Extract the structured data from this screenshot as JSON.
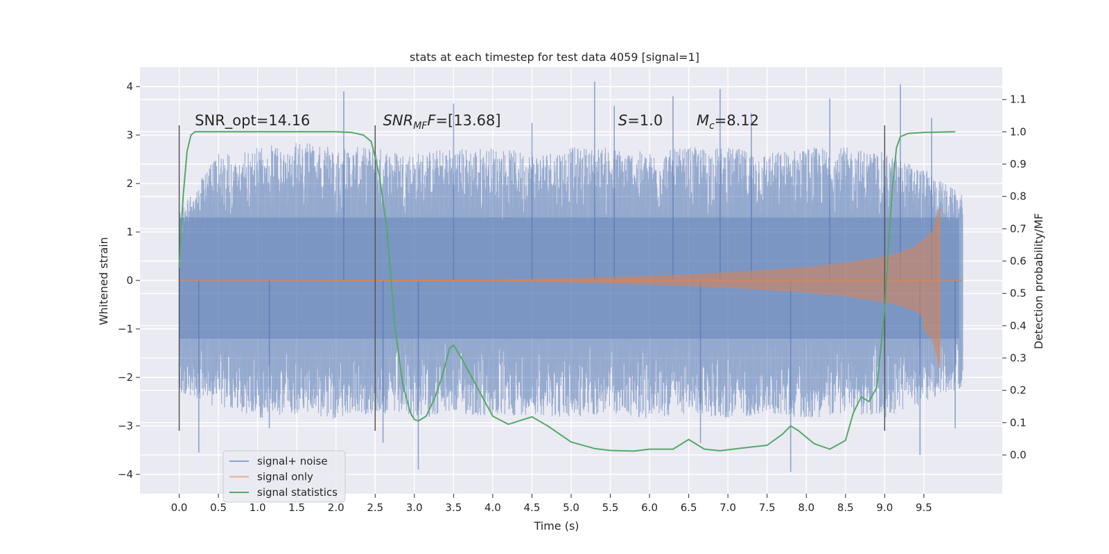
{
  "chart_data": {
    "type": "line",
    "title": "stats at each timestep for test data 4059 [signal=1]",
    "xlabel": "Time (s)",
    "ylabel": "Whitened strain",
    "y2label": "Detection probability/MF",
    "xlim": [
      -0.5,
      10.5
    ],
    "ylim": [
      -4.4,
      4.4
    ],
    "y2lim": [
      -0.12,
      1.2
    ],
    "x_ticks": [
      0.0,
      0.5,
      1.0,
      1.5,
      2.0,
      2.5,
      3.0,
      3.5,
      4.0,
      4.5,
      5.0,
      5.5,
      6.0,
      6.5,
      7.0,
      7.5,
      8.0,
      8.5,
      9.0,
      9.5
    ],
    "x_tick_labels": [
      "0.0",
      "0.5",
      "1.0",
      "1.5",
      "2.0",
      "2.5",
      "3.0",
      "3.5",
      "4.0",
      "4.5",
      "5.0",
      "5.5",
      "6.0",
      "6.5",
      "7.0",
      "7.5",
      "8.0",
      "8.5",
      "9.0",
      "9.5"
    ],
    "y_ticks": [
      -4,
      -3,
      -2,
      -1,
      0,
      1,
      2,
      3,
      4
    ],
    "y_tick_labels": [
      "−4",
      "−3",
      "−2",
      "−1",
      "0",
      "1",
      "2",
      "3",
      "4"
    ],
    "y2_ticks": [
      0.0,
      0.1,
      0.2,
      0.3,
      0.4,
      0.5,
      0.6,
      0.7,
      0.8,
      0.9,
      1.0,
      1.1
    ],
    "y2_tick_labels": [
      "0.0",
      "0.1",
      "0.2",
      "0.3",
      "0.4",
      "0.5",
      "0.6",
      "0.7",
      "0.8",
      "0.9",
      "1.0",
      "1.1"
    ],
    "grid": true,
    "legend_placement": "lower-left",
    "vertical_lines": {
      "x": [
        0.0,
        2.5,
        9.0
      ],
      "ymin": -3.1,
      "ymax": 3.2,
      "color": "#555555"
    },
    "annotations": [
      {
        "x": 0.2,
        "y": 3.3,
        "text": "SNR_opt=14.16"
      },
      {
        "x": 2.6,
        "y": 3.3,
        "prefix": "SNR",
        "sub": "MF",
        "suffix": "F=[13.68]"
      },
      {
        "x": 5.6,
        "y": 3.3,
        "prefix": "S",
        "sub": "",
        "suffix": "=1.0"
      },
      {
        "x": 6.6,
        "y": 3.3,
        "prefix": "M",
        "sub": "c",
        "suffix": "=8.12"
      }
    ],
    "series": [
      {
        "name": "signal+ noise",
        "axis": "left",
        "color": "#4c72b0",
        "x_range": [
          0.0,
          10.0
        ],
        "envelope": [
          [
            0.0,
            -2.1,
            1.3
          ],
          [
            0.5,
            -2.4,
            2.4
          ],
          [
            1.0,
            -2.6,
            2.5
          ],
          [
            1.5,
            -2.5,
            2.6
          ],
          [
            2.0,
            -2.6,
            2.5
          ],
          [
            2.5,
            -2.5,
            2.5
          ],
          [
            3.0,
            -2.6,
            2.4
          ],
          [
            3.5,
            -2.5,
            2.5
          ],
          [
            4.0,
            -2.6,
            2.5
          ],
          [
            4.5,
            -2.5,
            2.4
          ],
          [
            5.0,
            -2.6,
            2.5
          ],
          [
            5.5,
            -2.5,
            2.5
          ],
          [
            6.0,
            -2.6,
            2.4
          ],
          [
            6.5,
            -2.5,
            2.5
          ],
          [
            7.0,
            -2.6,
            2.5
          ],
          [
            7.5,
            -2.5,
            2.4
          ],
          [
            8.0,
            -2.6,
            2.5
          ],
          [
            8.5,
            -2.5,
            2.5
          ],
          [
            9.0,
            -2.6,
            2.4
          ],
          [
            9.5,
            -2.3,
            2.1
          ],
          [
            10.0,
            -2.0,
            1.6
          ]
        ],
        "peaks": [
          [
            0.25,
            -3.55
          ],
          [
            1.15,
            -3.05
          ],
          [
            2.1,
            3.9
          ],
          [
            2.6,
            -3.35
          ],
          [
            3.05,
            -3.9
          ],
          [
            3.5,
            3.65
          ],
          [
            4.5,
            3.25
          ],
          [
            5.3,
            4.1
          ],
          [
            5.55,
            3.6
          ],
          [
            6.3,
            3.8
          ],
          [
            6.65,
            -3.35
          ],
          [
            6.9,
            3.95
          ],
          [
            7.3,
            3.45
          ],
          [
            7.8,
            -3.95
          ],
          [
            8.3,
            3.75
          ],
          [
            9.2,
            4.05
          ],
          [
            9.45,
            -3.6
          ],
          [
            9.6,
            3.35
          ],
          [
            9.9,
            -3.05
          ]
        ]
      },
      {
        "name": "signal only",
        "axis": "left",
        "color": "#dd8452",
        "x_range": [
          0.0,
          9.7
        ],
        "envelope": [
          [
            0.0,
            0.0
          ],
          [
            4.0,
            0.02
          ],
          [
            5.0,
            0.05
          ],
          [
            6.0,
            0.1
          ],
          [
            6.5,
            0.13
          ],
          [
            7.0,
            0.17
          ],
          [
            7.5,
            0.22
          ],
          [
            8.0,
            0.28
          ],
          [
            8.5,
            0.37
          ],
          [
            9.0,
            0.5
          ],
          [
            9.2,
            0.58
          ],
          [
            9.4,
            0.72
          ],
          [
            9.6,
            1.0
          ],
          [
            9.7,
            1.5
          ]
        ],
        "merger_time": 9.7
      },
      {
        "name": "signal statistics",
        "axis": "right",
        "color": "#55a868",
        "x": [
          0.0,
          0.05,
          0.1,
          0.15,
          0.2,
          0.3,
          0.5,
          1.0,
          1.5,
          2.0,
          2.2,
          2.35,
          2.45,
          2.55,
          2.65,
          2.75,
          2.85,
          2.95,
          3.0,
          3.05,
          3.15,
          3.25,
          3.35,
          3.45,
          3.5,
          3.6,
          3.8,
          4.0,
          4.2,
          4.5,
          4.7,
          5.0,
          5.3,
          5.5,
          5.8,
          6.0,
          6.3,
          6.5,
          6.7,
          6.9,
          7.2,
          7.5,
          7.7,
          7.8,
          7.9,
          8.1,
          8.3,
          8.5,
          8.6,
          8.7,
          8.8,
          8.9,
          9.0,
          9.05,
          9.1,
          9.15,
          9.2,
          9.3,
          9.5,
          9.7,
          9.9
        ],
        "values": [
          0.58,
          0.8,
          0.94,
          0.99,
          1.0,
          1.0,
          1.0,
          1.0,
          1.0,
          1.0,
          0.998,
          0.99,
          0.97,
          0.87,
          0.7,
          0.4,
          0.22,
          0.13,
          0.11,
          0.105,
          0.12,
          0.17,
          0.24,
          0.33,
          0.34,
          0.3,
          0.21,
          0.12,
          0.095,
          0.118,
          0.09,
          0.04,
          0.02,
          0.014,
          0.012,
          0.018,
          0.018,
          0.048,
          0.018,
          0.013,
          0.022,
          0.03,
          0.065,
          0.09,
          0.075,
          0.035,
          0.018,
          0.045,
          0.13,
          0.18,
          0.165,
          0.21,
          0.45,
          0.65,
          0.83,
          0.95,
          0.985,
          0.995,
          0.998,
          0.999,
          1.0
        ]
      }
    ]
  }
}
